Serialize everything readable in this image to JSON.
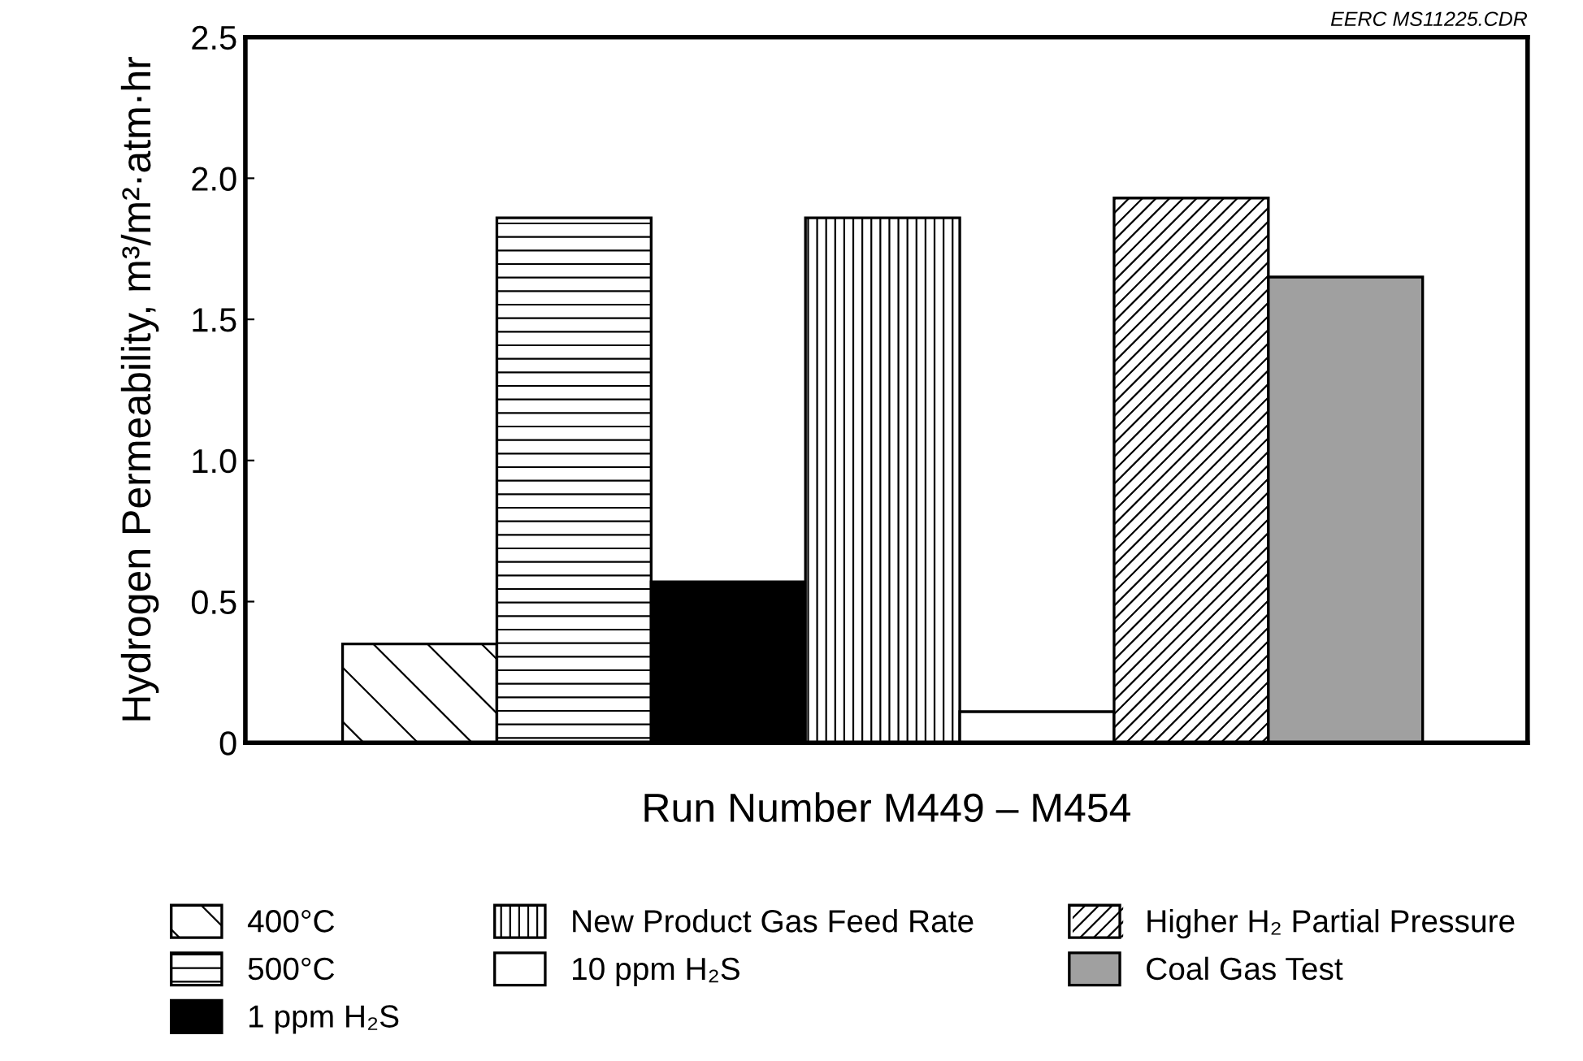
{
  "chart_data": {
    "type": "bar",
    "xlabel": "Run Number M449 – M454",
    "ylabel": "Hydrogen Permeability, m³/m²·atm·hr",
    "categories": [
      null,
      null,
      null,
      null,
      null,
      null,
      null
    ],
    "series": [
      {
        "name": "400°C",
        "color": "#ffffff",
        "values": [
          0.35,
          null,
          null,
          null,
          null,
          null,
          null
        ]
      },
      {
        "name": "500°C",
        "color": "#ffffff",
        "values": [
          null,
          1.86,
          null,
          null,
          null,
          null,
          null
        ]
      },
      {
        "name": "1 ppm H₂S",
        "color": "#000000",
        "values": [
          null,
          null,
          0.57,
          null,
          null,
          null,
          null
        ]
      },
      {
        "name": "New Product Gas Feed Rate",
        "color": "#ffffff",
        "values": [
          null,
          null,
          null,
          1.86,
          null,
          null,
          null
        ]
      },
      {
        "name": "10 ppm H₂S",
        "color": "#ffffff",
        "values": [
          null,
          null,
          null,
          null,
          0.11,
          null,
          null
        ]
      },
      {
        "name": "Higher H₂ Partial Pressure",
        "color": "#ffffff",
        "values": [
          null,
          null,
          null,
          null,
          null,
          1.93,
          null
        ]
      },
      {
        "name": "Coal Gas Test",
        "color": "#a0a0a0",
        "values": [
          null,
          null,
          null,
          null,
          null,
          null,
          1.65
        ]
      }
    ],
    "ylim": [
      0,
      2.5
    ],
    "yticks": [
      0,
      0.5,
      {
        "value": 1,
        "label": "1.0"
      },
      1.5,
      {
        "value": 2,
        "label": "2.0"
      },
      2.5
    ],
    "tick_labels": "y",
    "grid": false,
    "legend": "bottom",
    "annotations": [
      "EERC MS11225.CDR"
    ]
  }
}
